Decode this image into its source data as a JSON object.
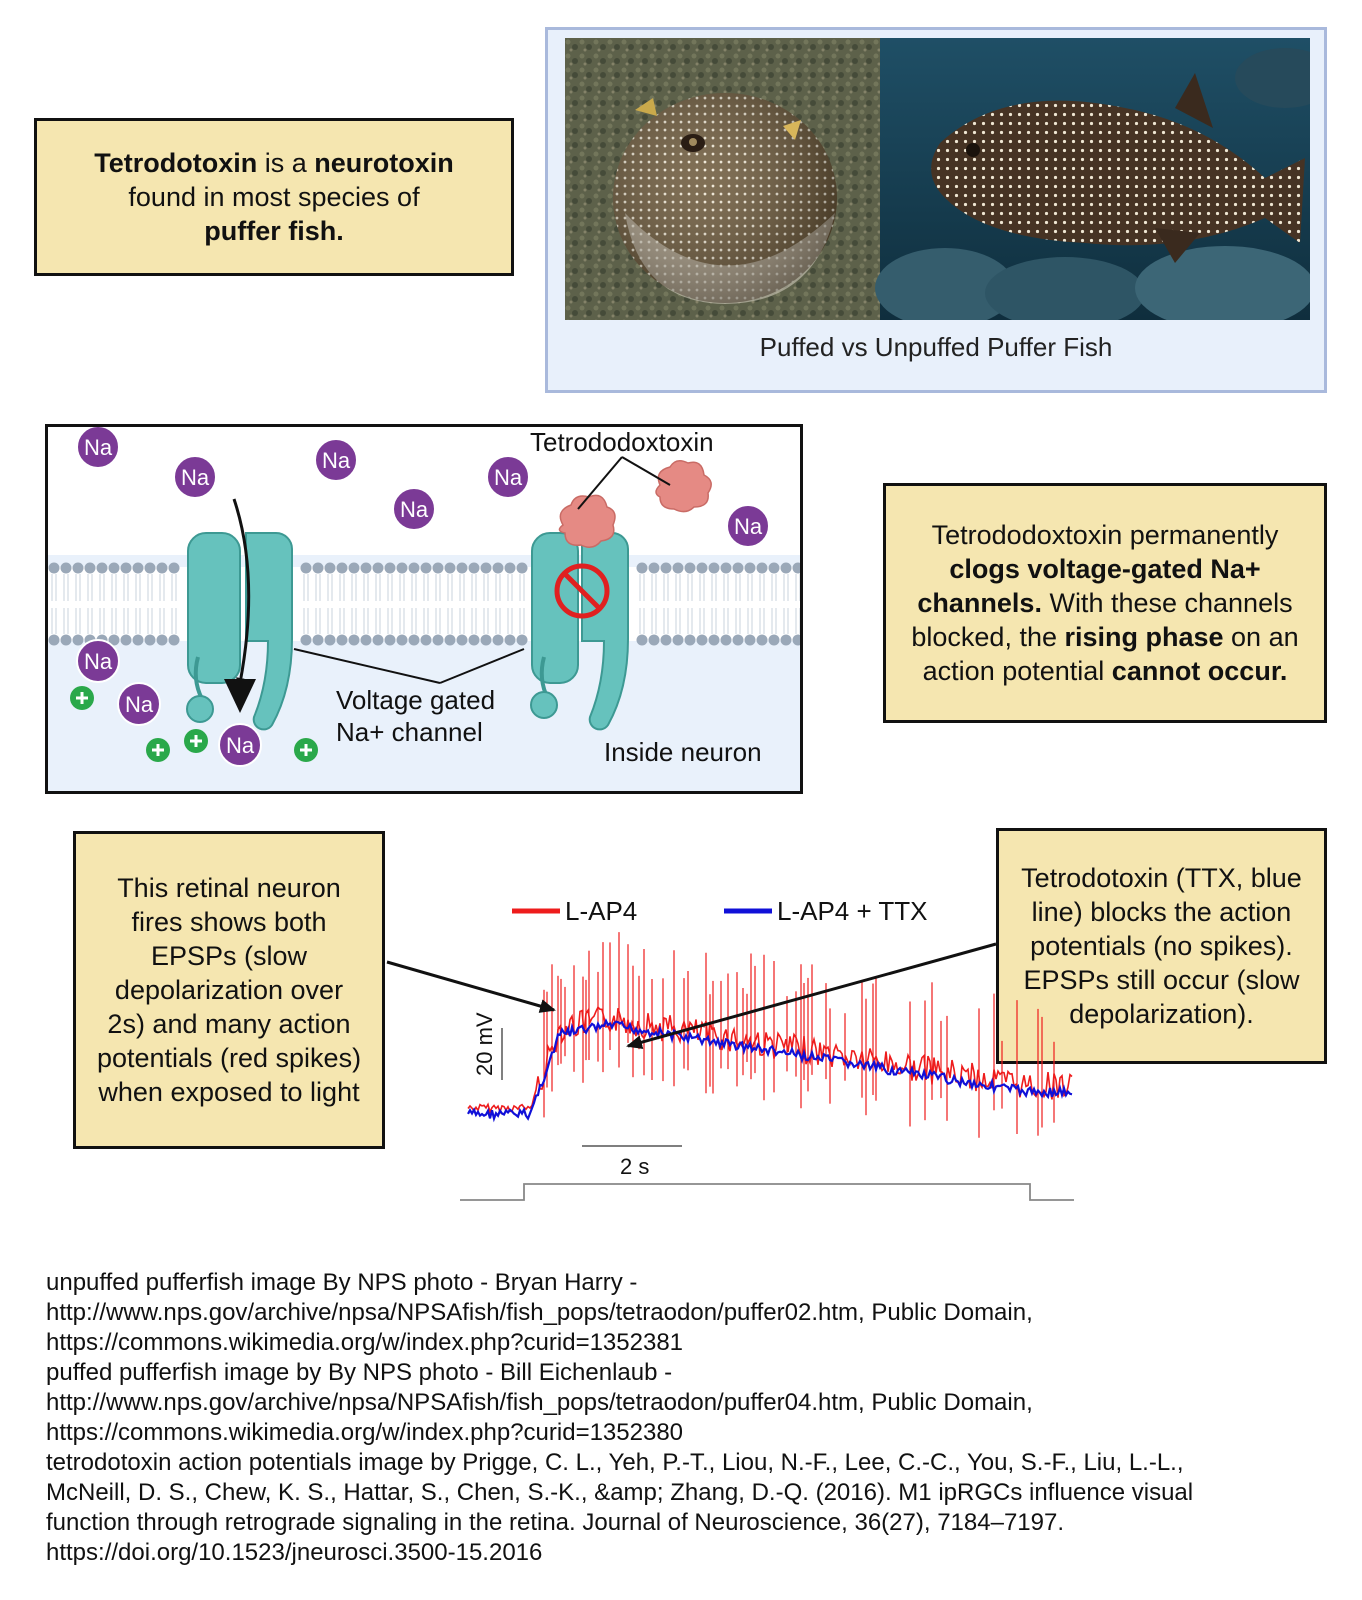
{
  "intro_note": {
    "t1": "Tetrodotoxin",
    "t2": " is a ",
    "t3": "neurotoxin",
    "t4": " found in most species of ",
    "t5": "puffer fish."
  },
  "photo_panel": {
    "caption": "Puffed vs Unpuffed Puffer Fish",
    "left_photo": "puffed puffer fish",
    "right_photo": "unpuffed puffer fish"
  },
  "membrane_diagram": {
    "ion_label": "Na",
    "toxin_label": "Tetrododoxtoxin",
    "channel_label_line1": "Voltage gated",
    "channel_label_line2": "Na+ channel",
    "inside_label": "Inside neuron",
    "blocked_icon": "prohibited-icon",
    "positive_icon": "plus-icon"
  },
  "mechanism_note": {
    "t1": "Tetrododoxtoxin permanently ",
    "t2": "clogs voltage-gated Na+ channels.",
    "t3": "  With these channels blocked, the ",
    "t4": "rising phase",
    "t5": " on an action potential ",
    "t6": "cannot occur."
  },
  "retina_note": {
    "text": "This retinal neuron fires shows both EPSPs (slow depolarization over 2s) and many action potentials (red spikes) when exposed to light"
  },
  "ttx_note": {
    "text": "Tetrodotoxin (TTX, blue line) blocks the action potentials (no spikes). EPSPs still occur (slow depolarization)."
  },
  "chart_data": {
    "type": "line",
    "title": "",
    "xlabel": "",
    "ylabel": "",
    "scale_bars": {
      "voltage": "20 mV",
      "time": "2 s"
    },
    "series": [
      {
        "name": "L-AP4",
        "color": "#ee1c1c",
        "description_values": {
          "baseline_mV": 0,
          "epsp_peak_mV": 20,
          "spikes": "many action potentials",
          "spike_peak_mV": 45
        }
      },
      {
        "name": "L-AP4 + TTX",
        "color": "#1010d8",
        "description_values": {
          "baseline_mV": -2,
          "epsp_peak_mV": 20,
          "spikes": "none"
        }
      }
    ],
    "stimulus_trace": "light step",
    "colors": {
      "red": "#ee1c1c",
      "blue": "#1010d8"
    }
  },
  "credits": [
    "unpuffed pufferfish image By NPS photo - Bryan Harry - http://www.nps.gov/archive/npsa/NPSAfish/fish_pops/tetraodon/puffer02.htm, Public Domain, https://commons.wikimedia.org/w/index.php?curid=1352381",
    "puffed pufferfish image by By NPS photo - Bill Eichenlaub - http://www.nps.gov/archive/npsa/NPSAfish/fish_pops/tetraodon/puffer04.htm, Public Domain, https://commons.wikimedia.org/w/index.php?curid=1352380",
    "tetrodotoxin action potentials image by Prigge, C. L., Yeh, P.-T., Liou, N.-F., Lee, C.-C., You, S.-F., Liu, L.-L., McNeill, D. S., Chew, K. S., Hattar, S., Chen, S.-K., &amp; Zhang, D.-Q. (2016). M1 ipRGCs influence visual function through retrograde signaling in the retina. Journal of Neuroscience, 36(27), 7184–7197. https://doi.org/10.1523/jneurosci.3500-15.2016"
  ]
}
